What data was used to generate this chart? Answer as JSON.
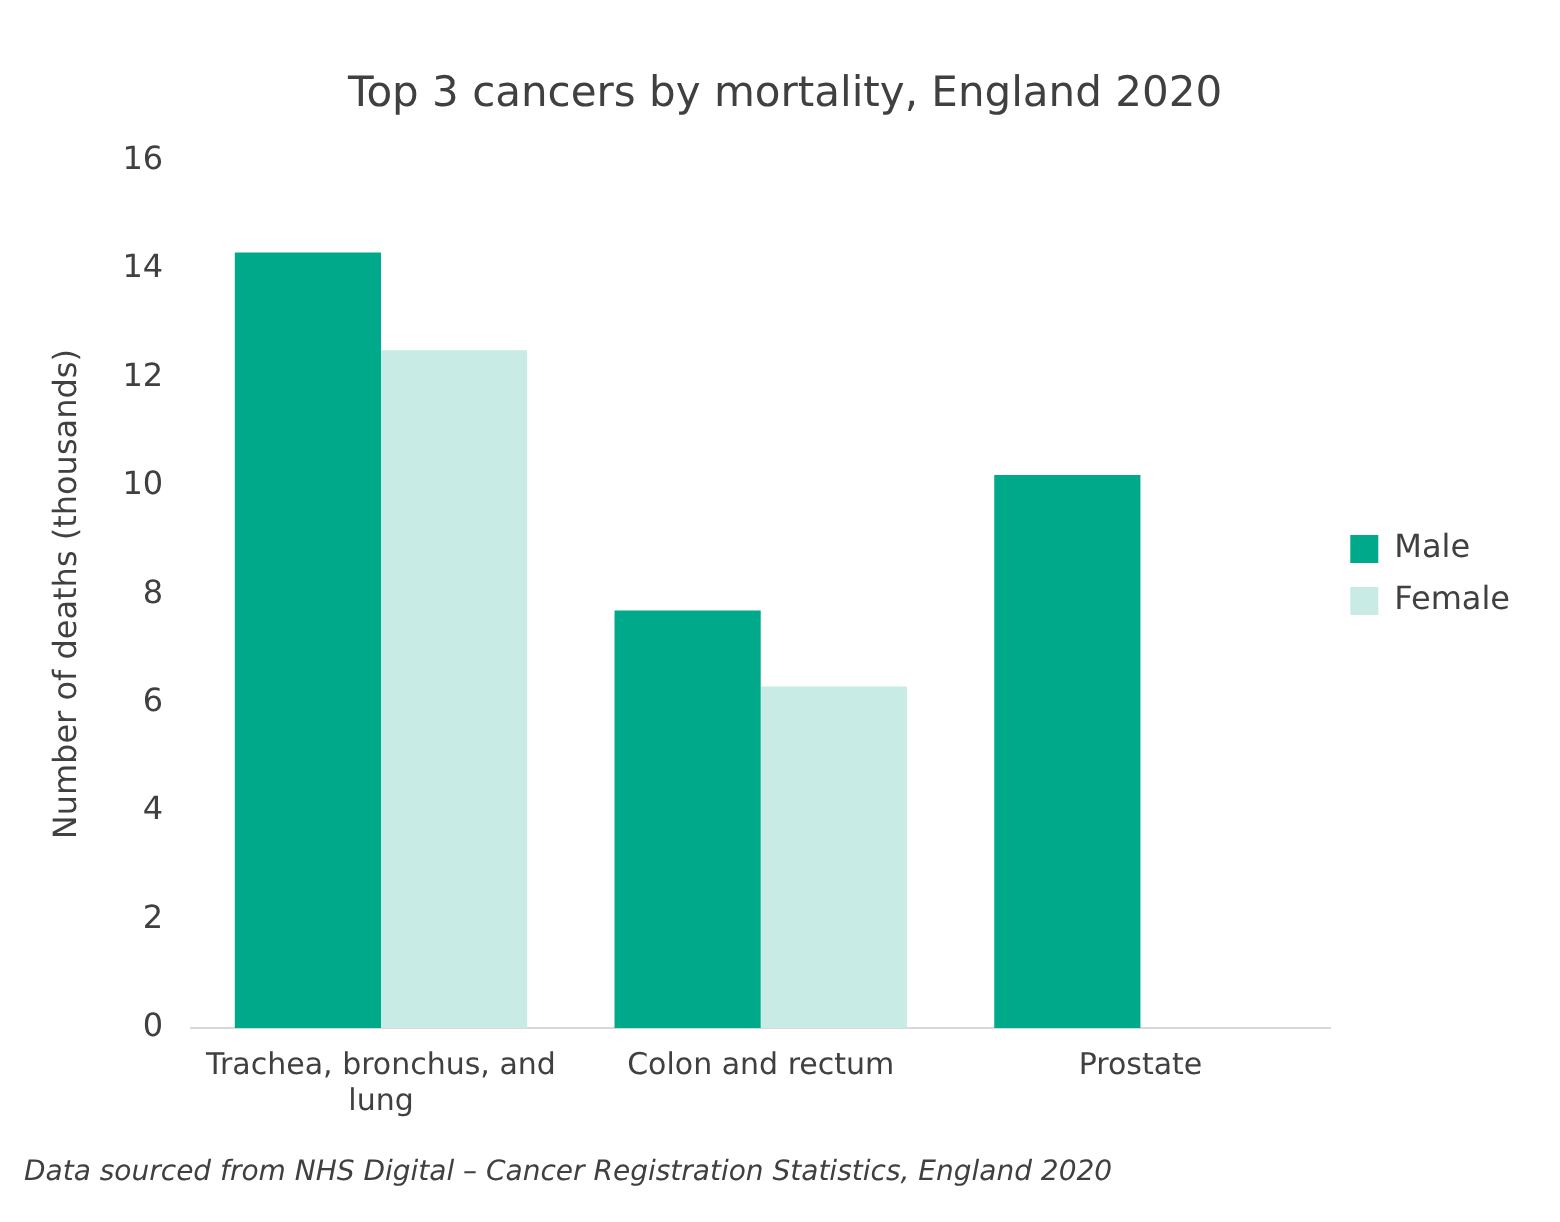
{
  "chart_data": {
    "type": "bar",
    "title": "Top 3 cancers by mortality, England 2020",
    "ylabel": "Number of deaths (thousands)",
    "categories": [
      "Trachea, bronchus, and lung",
      "Colon and rectum",
      "Prostate"
    ],
    "series": [
      {
        "name": "Male",
        "color": "#00a98a",
        "values": [
          14.3,
          7.7,
          10.2
        ]
      },
      {
        "name": "Female",
        "color": "#c8ece5",
        "values": [
          12.5,
          6.3,
          null
        ]
      }
    ],
    "ylim": [
      0,
      16
    ],
    "yticks": [
      0,
      2,
      4,
      6,
      8,
      10,
      12,
      14,
      16
    ],
    "grid": false,
    "legend": "right",
    "annotations": [
      "Data sourced from NHS Digital – Cancer Registration Statistics, England 2020"
    ]
  }
}
